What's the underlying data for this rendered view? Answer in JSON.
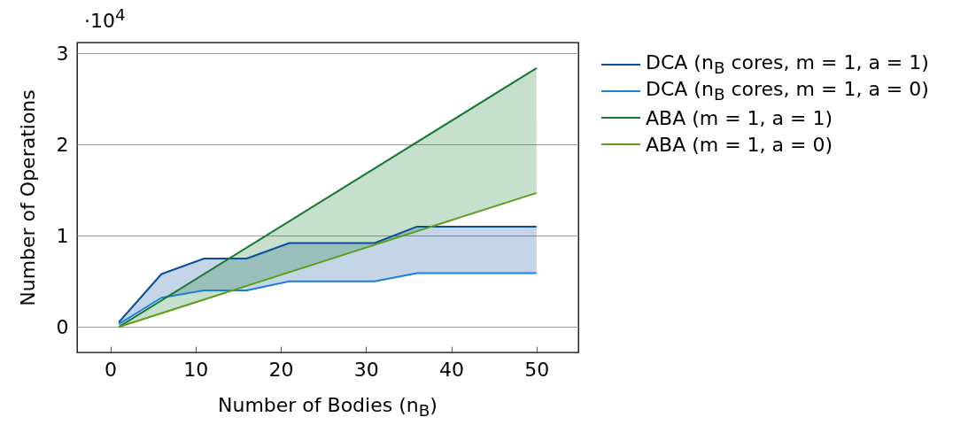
{
  "chart_data": {
    "type": "line",
    "xlabel": "Number of Bodies (n$_{B}$)",
    "ylabel": "Number of Operations",
    "annotations": [
      "·10$^{4}$"
    ],
    "xlim": [
      -3.9,
      54.9
    ],
    "xticks": [
      0,
      10,
      20,
      30,
      40,
      50
    ],
    "ylim": [
      -0.28,
      3.12
    ],
    "yticks": [
      0,
      1,
      2,
      3
    ],
    "grid": "y",
    "legend": "top right",
    "series": [
      {
        "name": "DCA (n$_{B}$ cores, m = 1, a = 1)",
        "color": "#0a4f99",
        "x": [
          1,
          6,
          11,
          16,
          21,
          31,
          36,
          50
        ],
        "values": [
          0.05,
          0.58,
          0.75,
          0.75,
          0.92,
          0.92,
          1.1,
          1.1
        ],
        "lower": [
          0.03,
          0.32,
          0.4,
          0.4,
          0.5,
          0.5,
          0.59,
          0.59
        ],
        "upper": [
          0.05,
          0.58,
          0.75,
          0.75,
          0.92,
          0.92,
          1.1,
          1.1
        ]
      },
      {
        "name": "DCA (n$_{B}$ cores, m = 1, a = 0)",
        "color": "#1b7fd6",
        "x": [
          1,
          6,
          11,
          16,
          21,
          31,
          36,
          50
        ],
        "values": [
          0.03,
          0.32,
          0.4,
          0.4,
          0.5,
          0.5,
          0.59,
          0.59
        ]
      },
      {
        "name": "ABA (m = 1, a = 1)",
        "color": "#16782e",
        "x": [
          1,
          50
        ],
        "values": [
          0,
          2.84
        ],
        "lower": [
          0,
          1.47
        ],
        "upper": [
          0,
          2.84
        ]
      },
      {
        "name": "ABA (m = 1, a = 0)",
        "color": "#5c9e1c",
        "x": [
          1,
          50
        ],
        "values": [
          0,
          1.47
        ]
      }
    ]
  }
}
